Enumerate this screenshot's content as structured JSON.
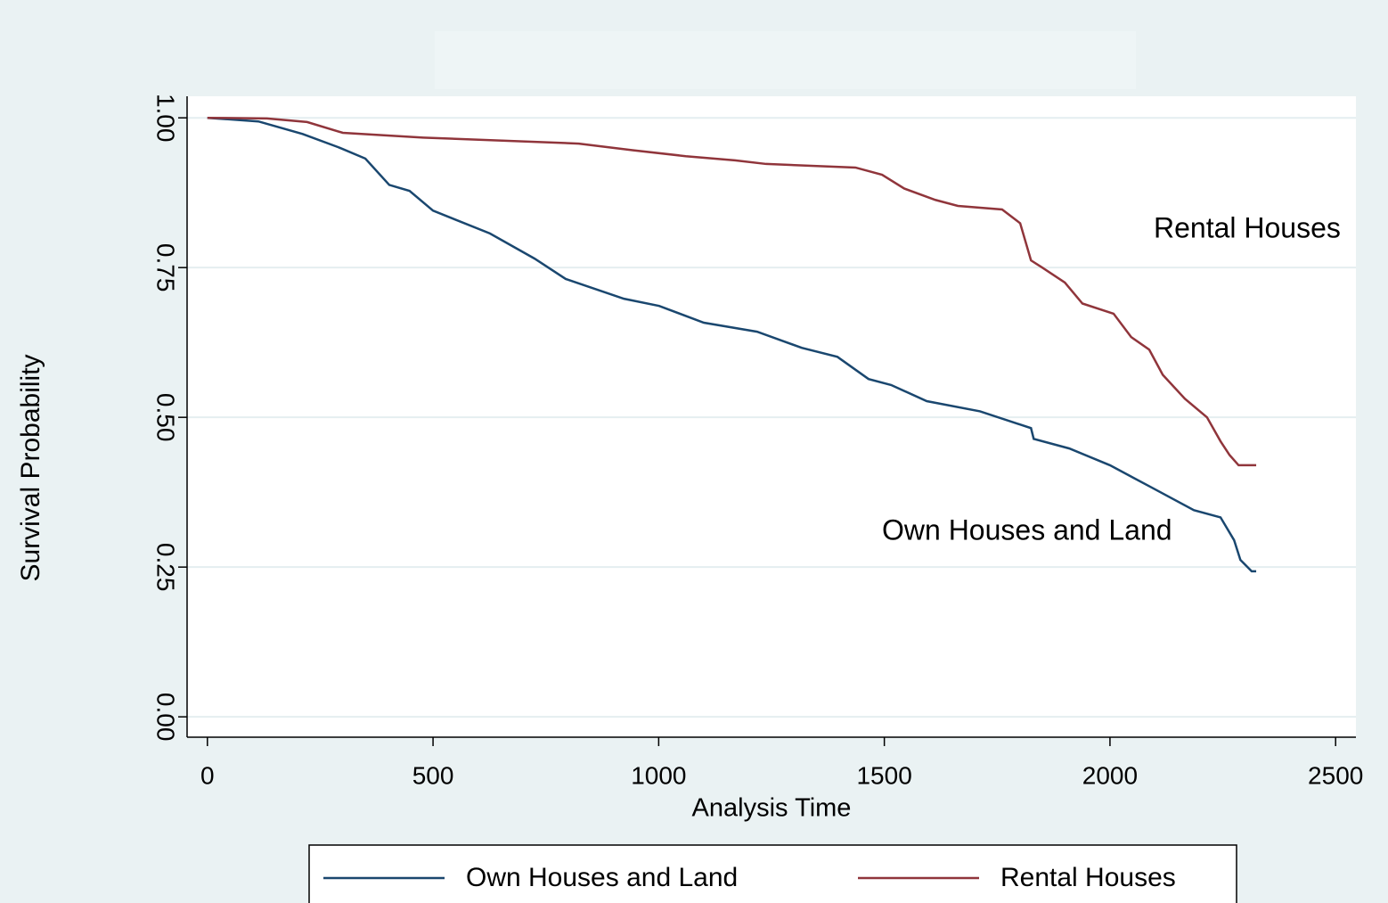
{
  "chart_data": {
    "type": "line",
    "x_label": "Analysis Time",
    "y_label": "Survival Probability",
    "xlim": [
      -45,
      2545
    ],
    "ylim": [
      -0.034,
      1.036
    ],
    "xticks": [
      0,
      500,
      1000,
      1500,
      2000,
      2500
    ],
    "yticks": [
      {
        "value": 0,
        "label": "0.00"
      },
      0.25,
      {
        "value": 0.5,
        "label": "0.50"
      },
      0.75,
      {
        "value": 1,
        "label": "1.00"
      }
    ],
    "grid": true,
    "legend": "bottom",
    "series": [
      {
        "name": "Own Houses and Land",
        "color": "#1a476f",
        "x": [
          0,
          113,
          211,
          290,
          350,
          403,
          448,
          500,
          626,
          725,
          794,
          923,
          1001,
          1100,
          1218,
          1317,
          1396,
          1465,
          1515,
          1594,
          1712,
          1825,
          1831,
          1910,
          2000,
          2087,
          2186,
          2245,
          2275,
          2289,
          2314,
          2324
        ],
        "values": [
          1.0,
          0.994,
          0.973,
          0.951,
          0.932,
          0.888,
          0.878,
          0.845,
          0.807,
          0.765,
          0.731,
          0.698,
          0.686,
          0.658,
          0.643,
          0.616,
          0.601,
          0.564,
          0.554,
          0.527,
          0.51,
          0.482,
          0.464,
          0.448,
          0.42,
          0.385,
          0.345,
          0.333,
          0.295,
          0.262,
          0.243,
          0.243
        ]
      },
      {
        "name": "Rental Houses",
        "color": "#90353b",
        "x": [
          0,
          132,
          221,
          300,
          478,
          823,
          942,
          1060,
          1169,
          1238,
          1436,
          1495,
          1544,
          1613,
          1663,
          1761,
          1801,
          1825,
          1850,
          1900,
          1939,
          2008,
          2047,
          2087,
          2117,
          2166,
          2215,
          2245,
          2265,
          2285,
          2324
        ],
        "values": [
          1.0,
          0.999,
          0.993,
          0.975,
          0.967,
          0.957,
          0.946,
          0.936,
          0.929,
          0.923,
          0.917,
          0.905,
          0.882,
          0.863,
          0.853,
          0.847,
          0.824,
          0.762,
          0.75,
          0.725,
          0.69,
          0.673,
          0.634,
          0.613,
          0.571,
          0.531,
          0.5,
          0.46,
          0.437,
          0.42,
          0.42
        ]
      }
    ],
    "annotations": [
      "Rental Houses",
      "Own Houses and Land"
    ]
  }
}
